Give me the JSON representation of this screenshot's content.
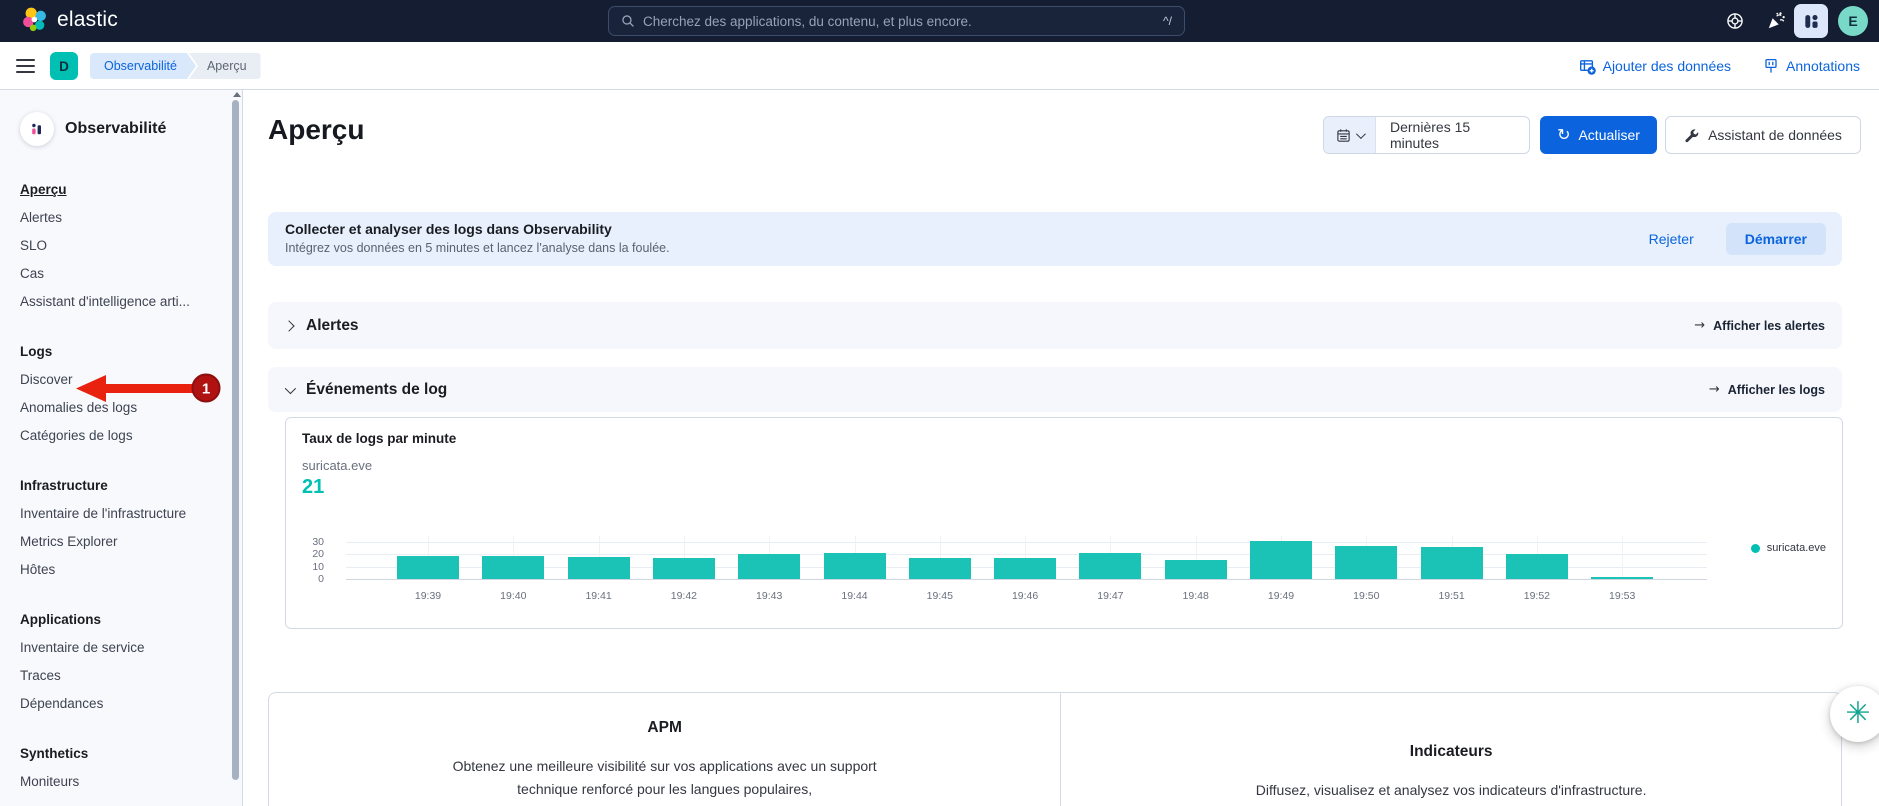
{
  "header": {
    "logo_label": "elastic",
    "search_placeholder": "Cherchez des applications, du contenu, et plus encore.",
    "search_shortcut": "^/",
    "avatar_initial": "E"
  },
  "toolbar": {
    "space_badge": "D",
    "breadcrumbs": [
      "Observabilité",
      "Aperçu"
    ],
    "add_data_label": "Ajouter des données",
    "annotations_label": "Annotations"
  },
  "sidebar": {
    "title": "Observabilité",
    "annotation_badge": "1",
    "groups": [
      {
        "header": null,
        "items": [
          {
            "label": "Aperçu",
            "active": true
          },
          {
            "label": "Alertes"
          },
          {
            "label": "SLO"
          },
          {
            "label": "Cas"
          },
          {
            "label": "Assistant d'intelligence arti..."
          }
        ]
      },
      {
        "header": "Logs",
        "items": [
          {
            "label": "Discover"
          },
          {
            "label": "Anomalies des logs"
          },
          {
            "label": "Catégories de logs"
          }
        ]
      },
      {
        "header": "Infrastructure",
        "items": [
          {
            "label": "Inventaire de l'infrastructure"
          },
          {
            "label": "Metrics Explorer"
          },
          {
            "label": "Hôtes"
          }
        ]
      },
      {
        "header": "Applications",
        "items": [
          {
            "label": "Inventaire de service"
          },
          {
            "label": "Traces"
          },
          {
            "label": "Dépendances"
          }
        ]
      },
      {
        "header": "Synthetics",
        "items": [
          {
            "label": "Moniteurs"
          }
        ]
      }
    ]
  },
  "page": {
    "title": "Aperçu",
    "time_range": "Dernières 15 minutes",
    "refresh_label": "Actualiser",
    "assistant_label": "Assistant de données"
  },
  "banner": {
    "title": "Collecter et analyser des logs dans Observability",
    "subtitle": "Intégrez vos données en 5 minutes et lancez l'analyse dans la foulée.",
    "dismiss_label": "Rejeter",
    "start_label": "Démarrer"
  },
  "alerts_section": {
    "title": "Alertes",
    "link": "Afficher les alertes",
    "arrow": "→"
  },
  "logs_section": {
    "title": "Événements de log",
    "link": "Afficher les logs",
    "arrow": "→"
  },
  "chart_data": {
    "type": "bar",
    "title": "Taux de logs par minute",
    "series_label": "suricata.eve",
    "current_value": "21",
    "categories": [
      "19:39",
      "19:40",
      "19:41",
      "19:42",
      "19:43",
      "19:44",
      "19:45",
      "19:46",
      "19:47",
      "19:48",
      "19:49",
      "19:50",
      "19:51",
      "19:52",
      "19:53"
    ],
    "values": [
      19,
      19,
      18,
      17,
      20,
      21,
      17,
      17,
      21,
      15,
      31,
      27,
      26,
      20,
      2
    ],
    "yticks": [
      0,
      10,
      20,
      30
    ],
    "ylim": [
      0,
      30
    ],
    "legend": [
      "suricata.eve"
    ],
    "bar_color": "#1bc2b6",
    "grid": true,
    "legend_position": "right"
  },
  "bottom": {
    "apm_title": "APM",
    "apm_text": "Obtenez une meilleure visibilité sur vos applications avec un support technique renforcé pour les langues populaires,",
    "metrics_title": "Indicateurs",
    "metrics_text": "Diffusez, visualisez et analysez vos indicateurs d'infrastructure."
  },
  "colors": {
    "accent_teal": "#00bfb3",
    "primary_blue": "#0b64dd",
    "header_bg": "#141d31",
    "annotation_red": "#e8220e"
  }
}
